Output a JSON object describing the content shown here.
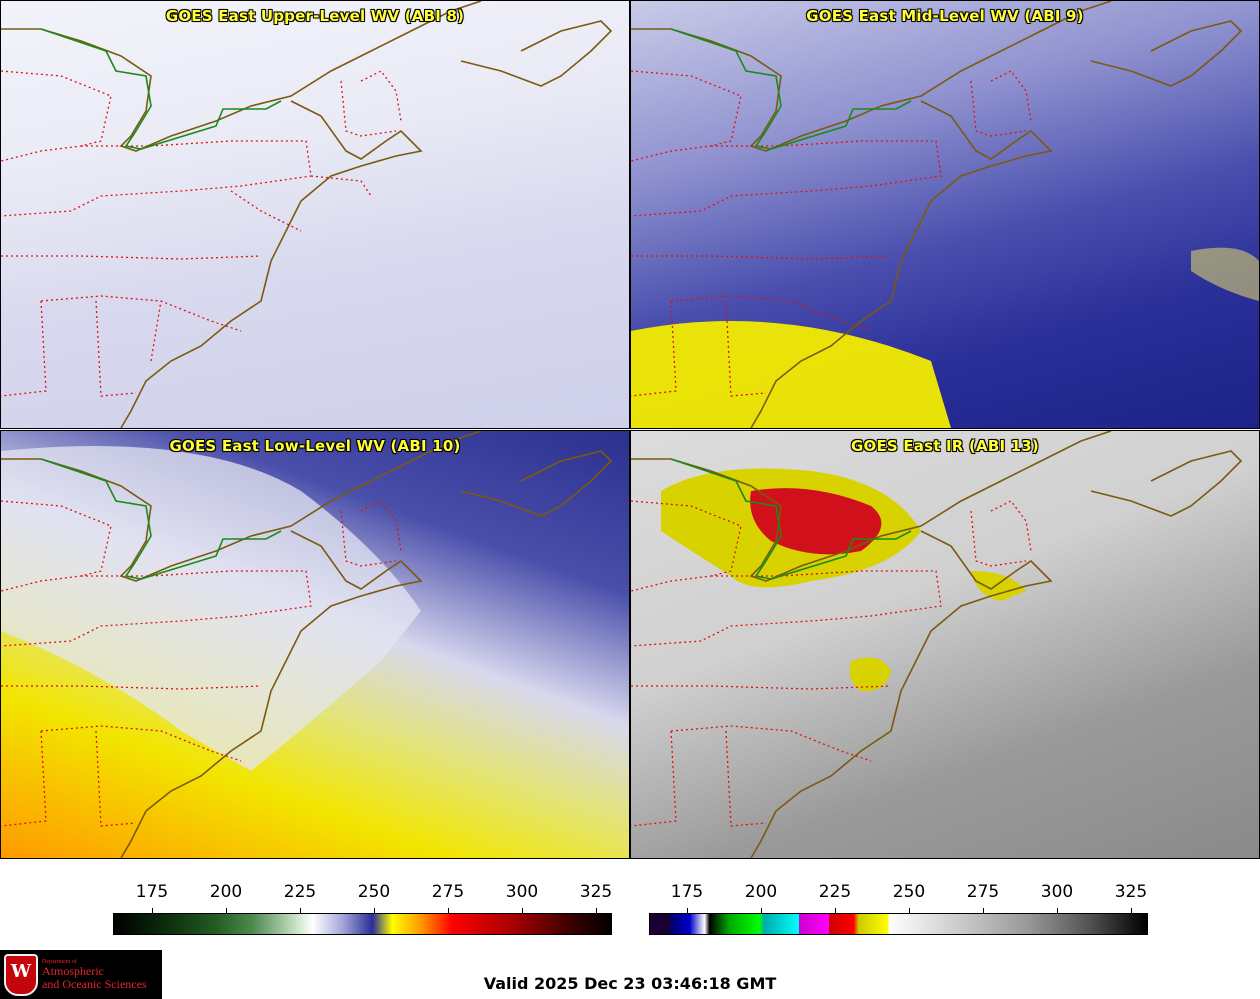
{
  "panels": [
    {
      "id": "p1",
      "title": "GOES East Upper-Level WV (ABI 8)"
    },
    {
      "id": "p2",
      "title": "GOES East Mid-Level WV (ABI 9)"
    },
    {
      "id": "p3",
      "title": "GOES East Low-Level WV (ABI 10)"
    },
    {
      "id": "p4",
      "title": "GOES East IR (ABI 13)"
    }
  ],
  "colorbars": {
    "wv": {
      "ticks": [
        "175",
        "200",
        "225",
        "250",
        "275",
        "300",
        "325"
      ]
    },
    "ir": {
      "ticks": [
        "175",
        "200",
        "225",
        "250",
        "275",
        "300",
        "325"
      ]
    }
  },
  "valid_time": "Valid 2025 Dec 23 03:46:18 GMT",
  "logo": {
    "line1": "Department of",
    "line2": "Atmospheric",
    "line3": "and Oceanic Sciences",
    "crest_letter": "W"
  }
}
